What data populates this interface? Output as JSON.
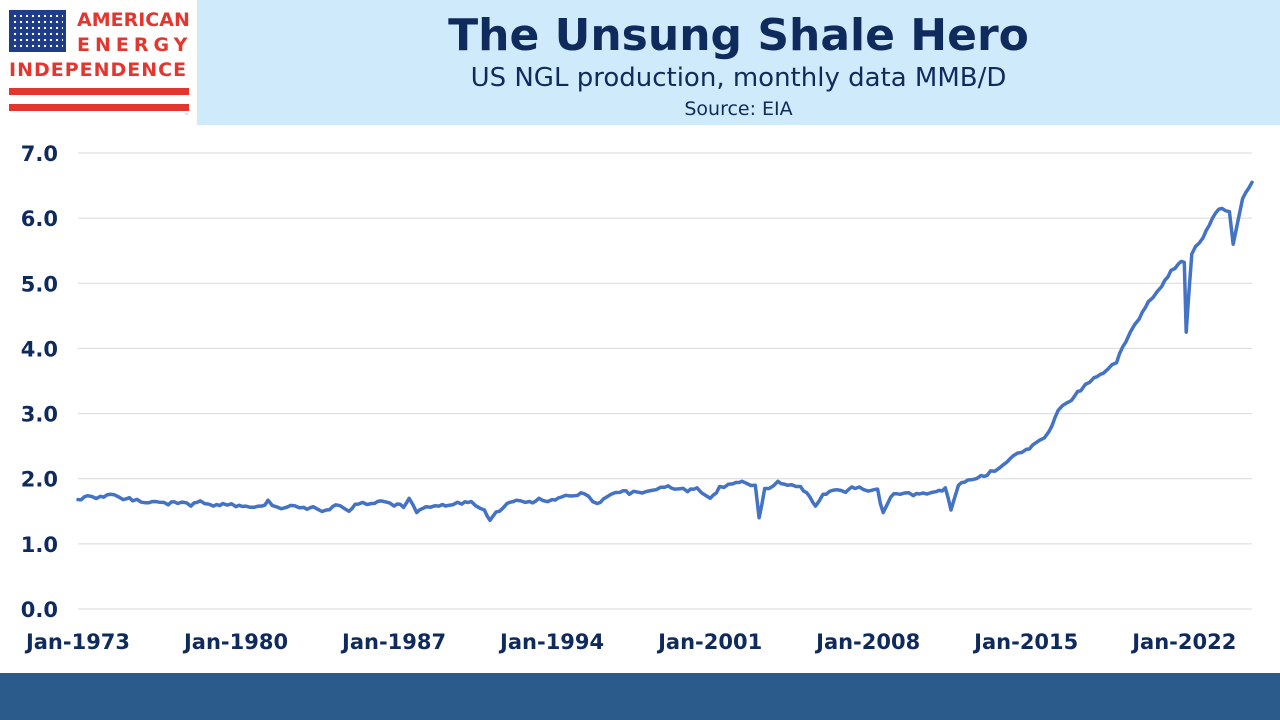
{
  "header": {
    "logo_lines": [
      "AMERICAN",
      "ENERGY",
      "INDEPENDENCE"
    ],
    "title": "The Unsung Shale Hero",
    "subtitle": "US NGL production, monthly data MMB/D",
    "source": "Source: EIA"
  },
  "colors": {
    "line": "#4472c4",
    "axis_text": "#0f2a5c",
    "header_bg": "#cfeafb",
    "footer_bg": "#2b5b8b",
    "logo_red": "#e4362f",
    "logo_blue": "#1f3c88",
    "grid": "#d9d9d9"
  },
  "chart_data": {
    "type": "line",
    "title": "The Unsung Shale Hero",
    "subtitle": "US NGL production, monthly data MMB/D",
    "xlabel": "",
    "ylabel": "",
    "ylim": [
      0,
      7
    ],
    "y_ticks": [
      "0.0",
      "1.0",
      "2.0",
      "3.0",
      "4.0",
      "5.0",
      "6.0",
      "7.0"
    ],
    "x_tick_labels": [
      "Jan-1973",
      "Jan-1980",
      "Jan-1987",
      "Jan-1994",
      "Jan-2001",
      "Jan-2008",
      "Jan-2015",
      "Jan-2022"
    ],
    "grid": "horizontal",
    "legend": "none",
    "series": [
      {
        "points": [
          [
            "1973-01",
            1.68
          ],
          [
            "1973-06",
            1.74
          ],
          [
            "1974-01",
            1.73
          ],
          [
            "1974-06",
            1.76
          ],
          [
            "1975-01",
            1.68
          ],
          [
            "1975-06",
            1.66
          ],
          [
            "1976-01",
            1.63
          ],
          [
            "1976-06",
            1.65
          ],
          [
            "1977-01",
            1.6
          ],
          [
            "1977-06",
            1.62
          ],
          [
            "1978-01",
            1.58
          ],
          [
            "1978-06",
            1.66
          ],
          [
            "1979-01",
            1.58
          ],
          [
            "1979-06",
            1.62
          ],
          [
            "1980-01",
            1.57
          ],
          [
            "1980-06",
            1.58
          ],
          [
            "1981-01",
            1.58
          ],
          [
            "1981-06",
            1.67
          ],
          [
            "1982-01",
            1.54
          ],
          [
            "1982-06",
            1.59
          ],
          [
            "1983-01",
            1.56
          ],
          [
            "1983-06",
            1.57
          ],
          [
            "1984-01",
            1.52
          ],
          [
            "1984-06",
            1.6
          ],
          [
            "1985-01",
            1.5
          ],
          [
            "1985-06",
            1.61
          ],
          [
            "1986-01",
            1.62
          ],
          [
            "1986-06",
            1.66
          ],
          [
            "1987-01",
            1.58
          ],
          [
            "1987-06",
            1.56
          ],
          [
            "1987-09",
            1.7
          ],
          [
            "1988-01",
            1.48
          ],
          [
            "1988-06",
            1.57
          ],
          [
            "1989-01",
            1.58
          ],
          [
            "1989-06",
            1.59
          ],
          [
            "1990-01",
            1.61
          ],
          [
            "1990-06",
            1.65
          ],
          [
            "1991-01",
            1.52
          ],
          [
            "1991-04",
            1.36
          ],
          [
            "1991-09",
            1.5
          ],
          [
            "1992-01",
            1.62
          ],
          [
            "1992-06",
            1.67
          ],
          [
            "1993-01",
            1.65
          ],
          [
            "1993-06",
            1.7
          ],
          [
            "1994-01",
            1.68
          ],
          [
            "1994-06",
            1.72
          ],
          [
            "1995-01",
            1.74
          ],
          [
            "1995-06",
            1.77
          ],
          [
            "1996-01",
            1.62
          ],
          [
            "1996-06",
            1.72
          ],
          [
            "1997-01",
            1.79
          ],
          [
            "1997-06",
            1.76
          ],
          [
            "1998-01",
            1.78
          ],
          [
            "1998-06",
            1.82
          ],
          [
            "1999-01",
            1.87
          ],
          [
            "1999-06",
            1.84
          ],
          [
            "2000-01",
            1.8
          ],
          [
            "2000-06",
            1.86
          ],
          [
            "2001-01",
            1.7
          ],
          [
            "2001-06",
            1.88
          ],
          [
            "2002-01",
            1.92
          ],
          [
            "2002-06",
            1.96
          ],
          [
            "2003-01",
            1.9
          ],
          [
            "2003-03",
            1.4
          ],
          [
            "2003-06",
            1.85
          ],
          [
            "2004-01",
            1.96
          ],
          [
            "2004-06",
            1.9
          ],
          [
            "2005-01",
            1.88
          ],
          [
            "2005-06",
            1.72
          ],
          [
            "2005-09",
            1.58
          ],
          [
            "2006-01",
            1.76
          ],
          [
            "2006-06",
            1.82
          ],
          [
            "2007-01",
            1.79
          ],
          [
            "2007-06",
            1.85
          ],
          [
            "2008-01",
            1.81
          ],
          [
            "2008-06",
            1.84
          ],
          [
            "2008-09",
            1.48
          ],
          [
            "2009-01",
            1.72
          ],
          [
            "2009-06",
            1.76
          ],
          [
            "2010-01",
            1.74
          ],
          [
            "2010-06",
            1.78
          ],
          [
            "2011-01",
            1.8
          ],
          [
            "2011-06",
            1.86
          ],
          [
            "2011-09",
            1.52
          ],
          [
            "2012-01",
            1.9
          ],
          [
            "2012-06",
            1.98
          ],
          [
            "2013-01",
            2.05
          ],
          [
            "2013-06",
            2.12
          ],
          [
            "2014-01",
            2.22
          ],
          [
            "2014-06",
            2.35
          ],
          [
            "2015-01",
            2.45
          ],
          [
            "2015-06",
            2.55
          ],
          [
            "2016-01",
            2.72
          ],
          [
            "2016-06",
            3.05
          ],
          [
            "2017-01",
            3.2
          ],
          [
            "2017-06",
            3.35
          ],
          [
            "2018-01",
            3.55
          ],
          [
            "2018-06",
            3.62
          ],
          [
            "2019-01",
            3.78
          ],
          [
            "2019-06",
            4.1
          ],
          [
            "2020-01",
            4.45
          ],
          [
            "2020-06",
            4.72
          ],
          [
            "2021-01",
            4.95
          ],
          [
            "2021-06",
            5.2
          ],
          [
            "2021-10",
            5.3
          ],
          [
            "2022-01",
            5.32
          ],
          [
            "2022-02",
            4.25
          ],
          [
            "2022-05",
            5.45
          ],
          [
            "2022-11",
            5.7
          ],
          [
            "2023-04",
            6.0
          ],
          [
            "2023-09",
            6.15
          ],
          [
            "2024-01",
            6.1
          ],
          [
            "2024-03",
            5.6
          ],
          [
            "2024-08",
            6.3
          ],
          [
            "2025-01",
            6.55
          ]
        ]
      }
    ]
  }
}
